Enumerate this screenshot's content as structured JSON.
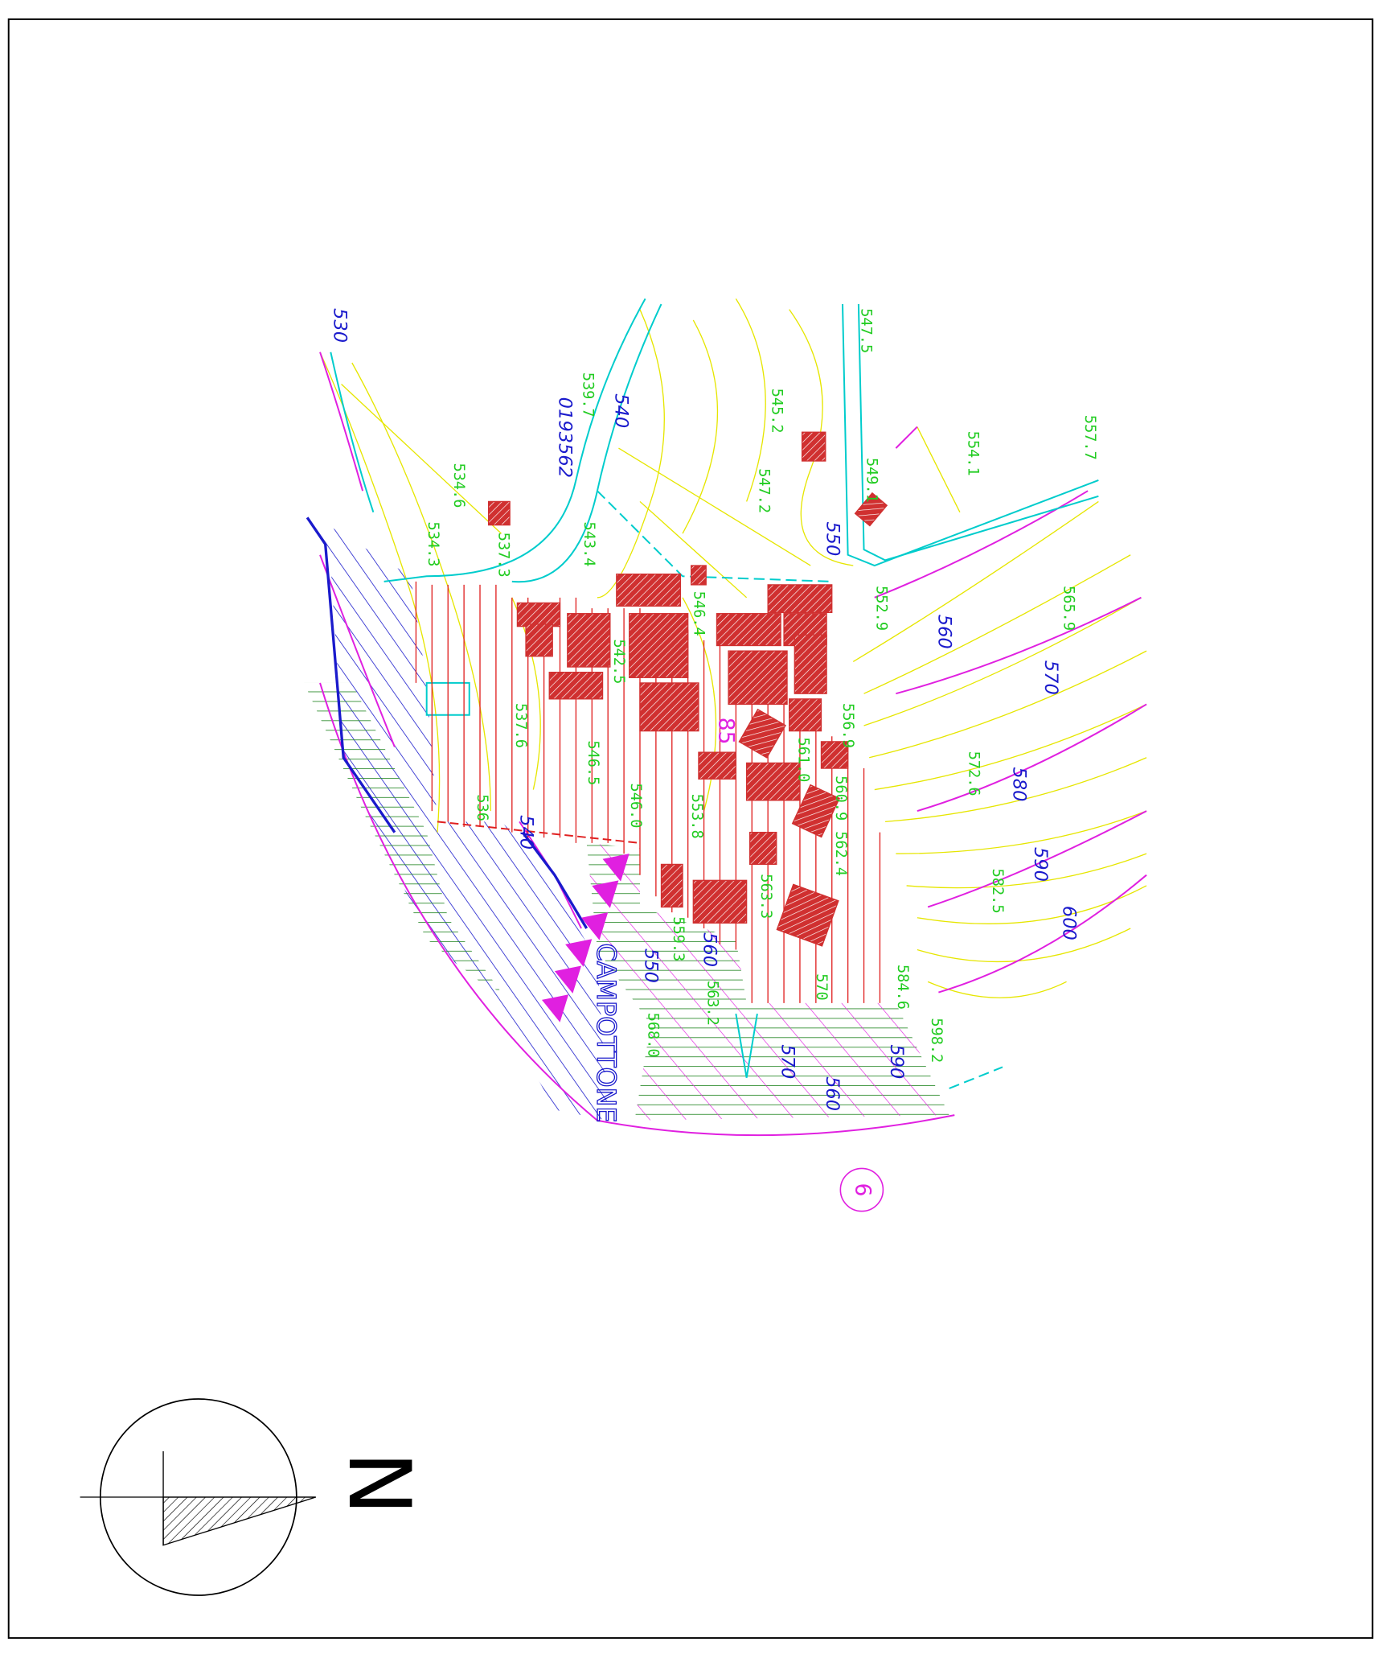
{
  "spot_heights": [
    "547.5",
    "545.2",
    "539.7",
    "557.7",
    "554.1",
    "549.1",
    "547.2",
    "534.6",
    "537.3",
    "534.3",
    "543.4",
    "552.9",
    "565.9",
    "542.5",
    "546.4",
    "537.6",
    "546.5",
    "556.9",
    "561.0",
    "572.6",
    "546.0",
    "553.8",
    "560.9",
    "562.4",
    "582.5",
    "563.3",
    "584.6",
    "598.2",
    "536",
    "568.0",
    "563.2",
    "559.3"
  ],
  "contour_labels": [
    "530",
    "540",
    "550",
    "560",
    "570",
    "580",
    "590",
    "600",
    "540",
    "550",
    "560",
    "570",
    "560",
    "590"
  ],
  "green_contour_label": "570",
  "sheet_code": "0193562",
  "place_name": "CAMPOTTONE",
  "block_label": "85",
  "sheet_number": "6",
  "north_label": "N"
}
